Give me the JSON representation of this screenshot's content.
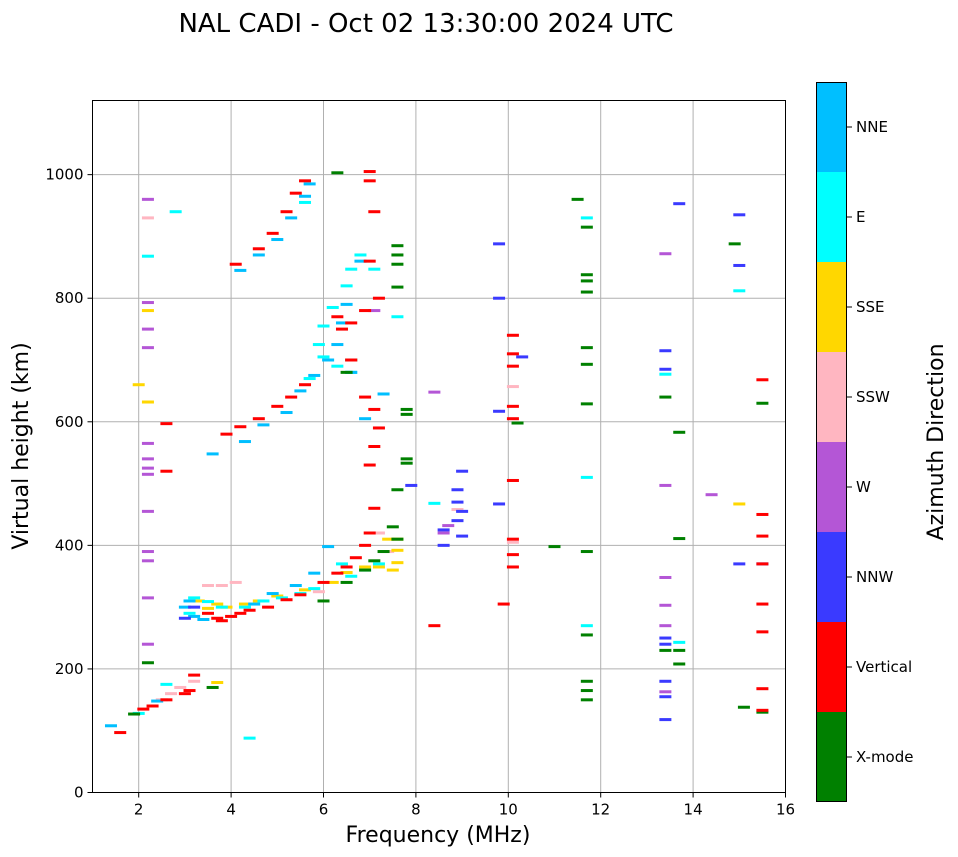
{
  "chart_data": {
    "type": "scatter",
    "title": "NAL CADI - Oct 02 13:30:00 2024 UTC",
    "xlabel": "Frequency (MHz)",
    "ylabel": "Virtual height (km)",
    "xlim": [
      1,
      16
    ],
    "ylim": [
      0,
      1120
    ],
    "xticks": [
      2,
      4,
      6,
      8,
      10,
      12,
      14,
      16
    ],
    "yticks": [
      0,
      200,
      400,
      600,
      800,
      1000
    ],
    "grid": true,
    "colorbar": {
      "title": "Azimuth Direction",
      "categories": [
        {
          "name": "X-mode",
          "color": "#008000"
        },
        {
          "name": "Vertical",
          "color": "#ff0000"
        },
        {
          "name": "NNW",
          "color": "#3a3aff"
        },
        {
          "name": "W",
          "color": "#b456d6"
        },
        {
          "name": "SSW",
          "color": "#ffb6c1"
        },
        {
          "name": "SSE",
          "color": "#ffd700"
        },
        {
          "name": "E",
          "color": "#00ffff"
        },
        {
          "name": "NNE",
          "color": "#00bfff"
        }
      ]
    },
    "series": [
      {
        "name": "Vertical",
        "points": [
          [
            1.6,
            97
          ],
          [
            2.1,
            135
          ],
          [
            2.3,
            140
          ],
          [
            2.6,
            150
          ],
          [
            3.0,
            160
          ],
          [
            3.1,
            165
          ],
          [
            3.2,
            190
          ],
          [
            3.5,
            290
          ],
          [
            3.7,
            282
          ],
          [
            3.8,
            278
          ],
          [
            4.0,
            285
          ],
          [
            4.2,
            290
          ],
          [
            4.4,
            295
          ],
          [
            4.8,
            300
          ],
          [
            5.2,
            312
          ],
          [
            5.5,
            320
          ],
          [
            6.0,
            340
          ],
          [
            6.3,
            355
          ],
          [
            6.5,
            365
          ],
          [
            6.7,
            380
          ],
          [
            6.9,
            400
          ],
          [
            7.0,
            420
          ],
          [
            7.1,
            460
          ],
          [
            7.0,
            530
          ],
          [
            7.1,
            560
          ],
          [
            7.2,
            590
          ],
          [
            7.1,
            620
          ],
          [
            6.9,
            640
          ],
          [
            6.6,
            700
          ],
          [
            6.4,
            750
          ],
          [
            6.3,
            770
          ],
          [
            6.6,
            760
          ],
          [
            6.9,
            780
          ],
          [
            7.2,
            800
          ],
          [
            7.0,
            860
          ],
          [
            7.1,
            940
          ],
          [
            7.0,
            990
          ],
          [
            7.0,
            1005
          ],
          [
            5.6,
            990
          ],
          [
            5.4,
            970
          ],
          [
            5.2,
            940
          ],
          [
            4.9,
            905
          ],
          [
            4.6,
            880
          ],
          [
            4.1,
            855
          ],
          [
            3.9,
            580
          ],
          [
            4.2,
            592
          ],
          [
            4.6,
            605
          ],
          [
            5.0,
            625
          ],
          [
            5.3,
            640
          ],
          [
            5.6,
            660
          ],
          [
            2.6,
            597
          ],
          [
            2.6,
            520
          ],
          [
            8.4,
            270
          ],
          [
            9.9,
            305
          ],
          [
            10.1,
            365
          ],
          [
            10.1,
            385
          ],
          [
            10.1,
            410
          ],
          [
            10.1,
            505
          ],
          [
            10.1,
            605
          ],
          [
            10.1,
            625
          ],
          [
            10.1,
            690
          ],
          [
            10.1,
            710
          ],
          [
            10.1,
            740
          ],
          [
            15.5,
            450
          ],
          [
            15.5,
            415
          ],
          [
            15.5,
            370
          ],
          [
            15.5,
            305
          ],
          [
            15.5,
            260
          ],
          [
            15.5,
            168
          ],
          [
            15.5,
            133
          ],
          [
            15.5,
            668
          ]
        ]
      },
      {
        "name": "X-mode",
        "points": [
          [
            1.9,
            127
          ],
          [
            2.2,
            210
          ],
          [
            3.6,
            170
          ],
          [
            6.3,
            1003
          ],
          [
            7.6,
            885
          ],
          [
            7.6,
            870
          ],
          [
            7.6,
            855
          ],
          [
            7.6,
            818
          ],
          [
            7.8,
            620
          ],
          [
            7.8,
            612
          ],
          [
            7.8,
            540
          ],
          [
            7.8,
            533
          ],
          [
            7.6,
            490
          ],
          [
            7.5,
            430
          ],
          [
            7.6,
            410
          ],
          [
            7.3,
            390
          ],
          [
            7.1,
            375
          ],
          [
            6.9,
            360
          ],
          [
            6.6,
            700
          ],
          [
            6.5,
            680
          ],
          [
            6.5,
            340
          ],
          [
            6.0,
            310
          ],
          [
            10.2,
            598
          ],
          [
            11.0,
            398
          ],
          [
            11.5,
            960
          ],
          [
            11.7,
            915
          ],
          [
            11.7,
            838
          ],
          [
            11.7,
            828
          ],
          [
            11.7,
            810
          ],
          [
            11.7,
            720
          ],
          [
            11.7,
            693
          ],
          [
            11.7,
            629
          ],
          [
            11.7,
            390
          ],
          [
            11.7,
            255
          ],
          [
            11.7,
            180
          ],
          [
            11.7,
            165
          ],
          [
            11.7,
            150
          ],
          [
            13.4,
            640
          ],
          [
            13.4,
            230
          ],
          [
            13.7,
            583
          ],
          [
            13.7,
            411
          ],
          [
            13.7,
            230
          ],
          [
            13.7,
            208
          ],
          [
            14.9,
            888
          ],
          [
            15.1,
            138
          ],
          [
            15.5,
            630
          ],
          [
            15.5,
            130
          ]
        ]
      },
      {
        "name": "NNW",
        "points": [
          [
            3.0,
            282
          ],
          [
            3.2,
            300
          ],
          [
            8.6,
            400
          ],
          [
            8.6,
            425
          ],
          [
            8.9,
            440
          ],
          [
            8.9,
            470
          ],
          [
            8.9,
            490
          ],
          [
            9.0,
            455
          ],
          [
            9.0,
            520
          ],
          [
            9.0,
            415
          ],
          [
            9.8,
            888
          ],
          [
            9.8,
            800
          ],
          [
            9.8,
            617
          ],
          [
            9.8,
            467
          ],
          [
            10.3,
            705
          ],
          [
            13.4,
            715
          ],
          [
            13.4,
            685
          ],
          [
            13.4,
            250
          ],
          [
            13.4,
            240
          ],
          [
            13.4,
            180
          ],
          [
            13.4,
            155
          ],
          [
            13.4,
            118
          ],
          [
            13.7,
            953
          ],
          [
            15.0,
            935
          ],
          [
            15.0,
            853
          ],
          [
            15.0,
            370
          ],
          [
            15.5,
            370
          ],
          [
            7.9,
            497
          ]
        ]
      },
      {
        "name": "W",
        "points": [
          [
            2.2,
            793
          ],
          [
            2.2,
            750
          ],
          [
            2.2,
            720
          ],
          [
            2.2,
            565
          ],
          [
            2.2,
            540
          ],
          [
            2.2,
            525
          ],
          [
            2.2,
            515
          ],
          [
            2.2,
            455
          ],
          [
            2.2,
            390
          ],
          [
            2.2,
            375
          ],
          [
            2.2,
            315
          ],
          [
            2.2,
            240
          ],
          [
            8.4,
            648
          ],
          [
            8.6,
            420
          ],
          [
            8.7,
            432
          ],
          [
            13.4,
            872
          ],
          [
            13.4,
            497
          ],
          [
            13.4,
            348
          ],
          [
            13.4,
            303
          ],
          [
            13.4,
            270
          ],
          [
            13.4,
            163
          ],
          [
            14.4,
            482
          ],
          [
            7.1,
            780
          ],
          [
            2.2,
            960
          ]
        ]
      },
      {
        "name": "SSW",
        "points": [
          [
            2.2,
            930
          ],
          [
            2.3,
            140
          ],
          [
            2.5,
            150
          ],
          [
            2.7,
            160
          ],
          [
            2.9,
            170
          ],
          [
            3.2,
            180
          ],
          [
            3.5,
            335
          ],
          [
            3.8,
            335
          ],
          [
            4.1,
            340
          ],
          [
            5.9,
            325
          ],
          [
            7.2,
            420
          ],
          [
            7.4,
            390
          ],
          [
            10.1,
            657
          ],
          [
            10.1,
            405
          ],
          [
            8.9,
            458
          ]
        ]
      },
      {
        "name": "SSE",
        "points": [
          [
            2.0,
            660
          ],
          [
            2.2,
            780
          ],
          [
            2.2,
            632
          ],
          [
            3.3,
            310
          ],
          [
            3.5,
            298
          ],
          [
            3.7,
            305
          ],
          [
            3.9,
            300
          ],
          [
            4.3,
            305
          ],
          [
            4.6,
            310
          ],
          [
            5.0,
            318
          ],
          [
            5.6,
            328
          ],
          [
            6.2,
            340
          ],
          [
            6.5,
            356
          ],
          [
            6.9,
            365
          ],
          [
            7.2,
            365
          ],
          [
            7.5,
            360
          ],
          [
            7.6,
            372
          ],
          [
            7.6,
            392
          ],
          [
            7.6,
            410
          ],
          [
            7.4,
            410
          ],
          [
            3.7,
            178
          ],
          [
            15.0,
            467
          ]
        ]
      },
      {
        "name": "E",
        "points": [
          [
            2.8,
            940
          ],
          [
            4.4,
            88
          ],
          [
            5.6,
            955
          ],
          [
            6.8,
            870
          ],
          [
            7.1,
            847
          ],
          [
            6.6,
            847
          ],
          [
            6.5,
            820
          ],
          [
            6.2,
            785
          ],
          [
            6.0,
            755
          ],
          [
            5.9,
            725
          ],
          [
            6.6,
            680
          ],
          [
            6.3,
            690
          ],
          [
            6.0,
            705
          ],
          [
            5.7,
            670
          ],
          [
            6.4,
            370
          ],
          [
            6.6,
            350
          ],
          [
            6.9,
            360
          ],
          [
            7.2,
            370
          ],
          [
            5.8,
            330
          ],
          [
            5.5,
            322
          ],
          [
            5.1,
            315
          ],
          [
            4.7,
            310
          ],
          [
            4.3,
            300
          ],
          [
            3.8,
            300
          ],
          [
            3.5,
            309
          ],
          [
            3.2,
            315
          ],
          [
            3.1,
            290
          ],
          [
            7.6,
            770
          ],
          [
            8.4,
            468
          ],
          [
            11.7,
            930
          ],
          [
            11.7,
            510
          ],
          [
            11.7,
            270
          ],
          [
            13.4,
            677
          ],
          [
            13.7,
            243
          ],
          [
            15.0,
            812
          ],
          [
            2.2,
            868
          ],
          [
            2.0,
            128
          ],
          [
            2.6,
            175
          ]
        ]
      },
      {
        "name": "NNE",
        "points": [
          [
            1.4,
            108
          ],
          [
            2.4,
            148
          ],
          [
            3.0,
            300
          ],
          [
            3.2,
            285
          ],
          [
            3.4,
            280
          ],
          [
            3.1,
            310
          ],
          [
            3.6,
            548
          ],
          [
            4.3,
            568
          ],
          [
            4.7,
            595
          ],
          [
            5.2,
            615
          ],
          [
            5.5,
            650
          ],
          [
            5.8,
            675
          ],
          [
            6.1,
            700
          ],
          [
            6.3,
            725
          ],
          [
            6.4,
            760
          ],
          [
            6.5,
            790
          ],
          [
            4.2,
            845
          ],
          [
            4.6,
            870
          ],
          [
            5.0,
            895
          ],
          [
            5.3,
            930
          ],
          [
            5.6,
            965
          ],
          [
            5.7,
            985
          ],
          [
            6.8,
            860
          ],
          [
            6.1,
            398
          ],
          [
            5.8,
            355
          ],
          [
            5.4,
            335
          ],
          [
            4.9,
            322
          ],
          [
            4.5,
            305
          ],
          [
            6.6,
            680
          ],
          [
            7.3,
            645
          ],
          [
            6.9,
            605
          ]
        ]
      }
    ]
  }
}
